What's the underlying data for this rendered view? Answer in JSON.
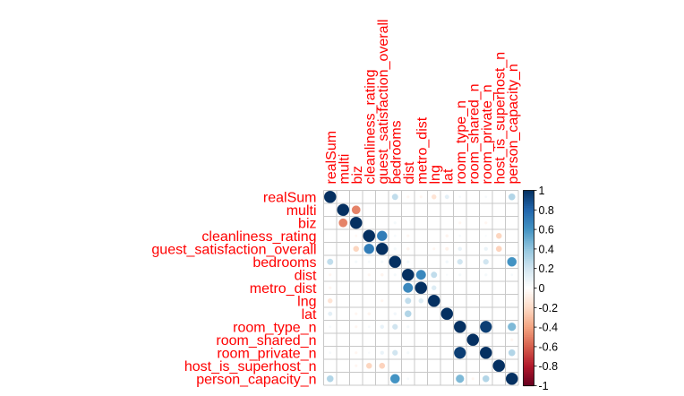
{
  "chart_data": {
    "type": "heatmap",
    "variables": [
      "realSum",
      "multi",
      "biz",
      "cleanliness_rating",
      "guest_satisfaction_overall",
      "bedrooms",
      "dist",
      "metro_dist",
      "lng",
      "lat",
      "room_type_n",
      "room_shared_n",
      "room_private_n",
      "host_is_superhost_n",
      "person_capacity_n"
    ],
    "matrix": [
      [
        1.0,
        0.0,
        0.0,
        0.0,
        0.0,
        0.25,
        -0.05,
        -0.05,
        -0.15,
        0.12,
        0.04,
        0.0,
        0.04,
        0.0,
        0.3
      ],
      [
        0.0,
        1.0,
        -0.5,
        0.0,
        0.0,
        0.0,
        0.0,
        0.0,
        0.0,
        0.0,
        0.0,
        0.0,
        0.0,
        0.0,
        0.0
      ],
      [
        0.0,
        -0.5,
        1.0,
        0.0,
        0.0,
        0.05,
        0.0,
        0.0,
        0.0,
        0.0,
        -0.05,
        0.0,
        -0.05,
        0.0,
        0.0
      ],
      [
        0.0,
        0.0,
        -0.04,
        1.0,
        0.7,
        0.04,
        -0.05,
        0.0,
        0.0,
        -0.06,
        0.04,
        0.0,
        0.03,
        -0.22,
        0.0
      ],
      [
        0.0,
        0.0,
        -0.22,
        0.7,
        1.0,
        0.05,
        -0.06,
        0.0,
        -0.05,
        -0.08,
        0.1,
        0.0,
        0.09,
        -0.23,
        0.0
      ],
      [
        0.25,
        0.0,
        0.05,
        0.04,
        0.05,
        1.0,
        0.05,
        0.0,
        0.0,
        0.06,
        0.2,
        0.0,
        0.2,
        0.0,
        0.6
      ],
      [
        -0.05,
        0.0,
        0.0,
        -0.05,
        -0.06,
        0.05,
        1.0,
        0.65,
        0.25,
        0.03,
        0.05,
        0.0,
        0.05,
        0.0,
        0.04
      ],
      [
        -0.05,
        0.0,
        0.0,
        0.0,
        0.0,
        0.0,
        0.65,
        1.0,
        0.15,
        0.0,
        0.0,
        0.0,
        0.0,
        0.0,
        0.0
      ],
      [
        -0.15,
        0.0,
        0.0,
        0.0,
        -0.05,
        0.0,
        0.25,
        0.15,
        1.0,
        0.0,
        0.0,
        0.0,
        0.0,
        0.0,
        0.0
      ],
      [
        0.12,
        0.0,
        -0.05,
        -0.06,
        0.0,
        0.06,
        0.3,
        0.0,
        0.0,
        1.0,
        0.0,
        0.0,
        0.0,
        0.0,
        0.0
      ],
      [
        0.04,
        0.0,
        -0.05,
        0.04,
        0.1,
        0.2,
        0.05,
        0.0,
        0.0,
        0.0,
        1.0,
        0.0,
        0.95,
        0.0,
        0.45
      ],
      [
        0.0,
        0.0,
        0.0,
        0.0,
        0.0,
        0.0,
        0.0,
        0.0,
        0.0,
        0.0,
        0.0,
        1.0,
        0.0,
        0.0,
        -0.05
      ],
      [
        0.04,
        0.0,
        -0.05,
        0.03,
        0.09,
        0.2,
        0.05,
        0.0,
        0.0,
        0.0,
        0.95,
        0.0,
        1.0,
        0.0,
        0.3
      ],
      [
        0.0,
        0.0,
        -0.05,
        -0.22,
        -0.23,
        0.0,
        0.0,
        0.0,
        0.0,
        0.0,
        0.0,
        0.0,
        0.0,
        1.0,
        0.0
      ],
      [
        0.3,
        0.0,
        0.0,
        0.0,
        0.0,
        0.6,
        0.04,
        0.0,
        0.0,
        0.0,
        0.45,
        -0.05,
        0.3,
        0.0,
        1.0
      ]
    ],
    "colorbar": {
      "range": [
        -1,
        1
      ],
      "ticks": [
        "1",
        "0.8",
        "0.6",
        "0.4",
        "0.2",
        "0",
        "-0.2",
        "-0.4",
        "-0.6",
        "-0.8",
        "-1"
      ],
      "stops": [
        "#67001F",
        "#B2182B",
        "#D6604D",
        "#F4A582",
        "#FDDBC7",
        "#FFFFFF",
        "#D1E5F0",
        "#92C5DE",
        "#4393C3",
        "#2166AC",
        "#053061"
      ]
    },
    "label_color": "#FF0000",
    "grid": true
  }
}
